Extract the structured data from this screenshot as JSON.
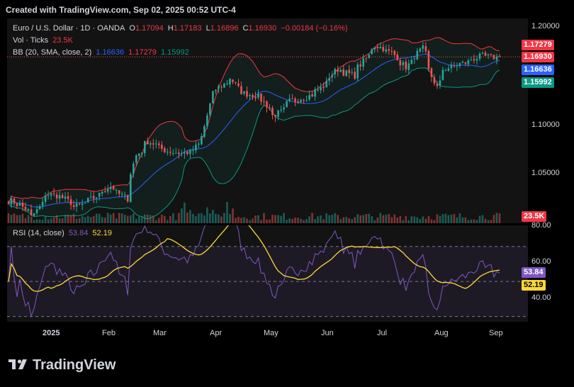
{
  "header": {
    "text": "Created with TradingView.com, Sep 02, 2025 00:52 UTC-4"
  },
  "legend": {
    "symbol": "Euro / U.S. Dollar · 1D · OANDA",
    "o_lbl": "O",
    "o": "1.17094",
    "h_lbl": "H",
    "h": "1.17183",
    "l_lbl": "L",
    "l": "1.16896",
    "c_lbl": "C",
    "c": "1.16930",
    "chg": "−0.00184 (−0.16%)",
    "vol_lbl": "Vol · Ticks",
    "vol": "23.5K",
    "bb_lbl": "BB (20, SMA, close, 2)",
    "bb_mid": "1.16636",
    "bb_up": "1.17279",
    "bb_low": "1.15992",
    "rsi_lbl": "RSI (14, close)",
    "rsi": "53.84",
    "rsi_ma": "52.19"
  },
  "price_axis": {
    "ticks": [
      "1.20000",
      "1.10000",
      "1.05000"
    ]
  },
  "rsi_axis": {
    "ticks": [
      "80.00",
      "60.00",
      "40.00"
    ]
  },
  "time_axis": {
    "labels": [
      "2025",
      "Feb",
      "Mar",
      "Apr",
      "May",
      "Jun",
      "Jul",
      "Aug",
      "Sep"
    ]
  },
  "tags": {
    "upper": "1.17279",
    "last": "1.16930",
    "mid": "1.16636",
    "lower": "1.15992",
    "vol": "23.5K",
    "rsi": "53.84",
    "rsi_ma": "52.19"
  },
  "colors": {
    "up": "#26a69a",
    "down": "#ef5350",
    "bb_mid": "#2962ff",
    "bb_up": "#f23645",
    "bb_low": "#089981",
    "rsi": "#7e57c2",
    "rsi_ma": "#fdd835"
  },
  "logo": {
    "text": "TradingView"
  },
  "chart_data": {
    "type": "candlestick",
    "symbol": "EUR/USD",
    "interval": "1D",
    "price_range": [
      1.015,
      1.205
    ],
    "rsi_range": [
      27,
      82
    ],
    "rsi_levels": [
      70,
      50,
      30
    ],
    "anchors": [
      [
        "2025-01-01",
        1.036
      ],
      [
        "2025-01-07",
        1.032
      ],
      [
        "2025-01-13",
        1.021
      ],
      [
        "2025-01-20",
        1.042
      ],
      [
        "2025-01-27",
        1.04
      ],
      [
        "2025-02-03",
        1.03
      ],
      [
        "2025-02-10",
        1.036
      ],
      [
        "2025-02-20",
        1.049
      ],
      [
        "2025-02-28",
        1.038
      ],
      [
        "2025-03-05",
        1.078
      ],
      [
        "2025-03-11",
        1.091
      ],
      [
        "2025-03-20",
        1.082
      ],
      [
        "2025-03-27",
        1.08
      ],
      [
        "2025-04-01",
        1.081
      ],
      [
        "2025-04-07",
        1.095
      ],
      [
        "2025-04-11",
        1.135
      ],
      [
        "2025-04-21",
        1.15
      ],
      [
        "2025-04-25",
        1.137
      ],
      [
        "2025-05-05",
        1.132
      ],
      [
        "2025-05-12",
        1.115
      ],
      [
        "2025-05-15",
        1.118
      ],
      [
        "2025-05-20",
        1.128
      ],
      [
        "2025-05-28",
        1.132
      ],
      [
        "2025-06-04",
        1.14
      ],
      [
        "2025-06-12",
        1.158
      ],
      [
        "2025-06-20",
        1.152
      ],
      [
        "2025-06-30",
        1.178
      ],
      [
        "2025-07-01",
        1.18
      ],
      [
        "2025-07-09",
        1.173
      ],
      [
        "2025-07-16",
        1.16
      ],
      [
        "2025-07-24",
        1.177
      ],
      [
        "2025-07-31",
        1.141
      ],
      [
        "2025-08-04",
        1.158
      ],
      [
        "2025-08-14",
        1.164
      ],
      [
        "2025-08-22",
        1.17
      ],
      [
        "2025-08-29",
        1.169
      ],
      [
        "2025-09-01",
        1.1693
      ]
    ],
    "volume_max": 140,
    "last_volume": "23.5K"
  }
}
